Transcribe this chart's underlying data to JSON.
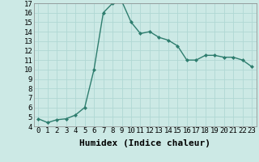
{
  "x": [
    0,
    1,
    2,
    3,
    4,
    5,
    6,
    7,
    8,
    9,
    10,
    11,
    12,
    13,
    14,
    15,
    16,
    17,
    18,
    19,
    20,
    21,
    22,
    23
  ],
  "y": [
    4.8,
    4.4,
    4.7,
    4.8,
    5.2,
    6.0,
    10.0,
    16.0,
    17.0,
    17.2,
    15.0,
    13.8,
    14.0,
    13.4,
    13.1,
    12.5,
    11.0,
    11.0,
    11.5,
    11.5,
    11.3,
    11.3,
    11.0,
    10.3
  ],
  "xlabel": "Humidex (Indice chaleur)",
  "bg_color": "#cce9e5",
  "line_color": "#2e7d6e",
  "grid_color": "#b0d8d4",
  "ylim_min": 4,
  "ylim_max": 17,
  "yticks": [
    4,
    5,
    6,
    7,
    8,
    9,
    10,
    11,
    12,
    13,
    14,
    15,
    16,
    17
  ],
  "xticks": [
    0,
    1,
    2,
    3,
    4,
    5,
    6,
    7,
    8,
    9,
    10,
    11,
    12,
    13,
    14,
    15,
    16,
    17,
    18,
    19,
    20,
    21,
    22,
    23
  ],
  "tick_fontsize": 6.5,
  "xlabel_fontsize": 8
}
